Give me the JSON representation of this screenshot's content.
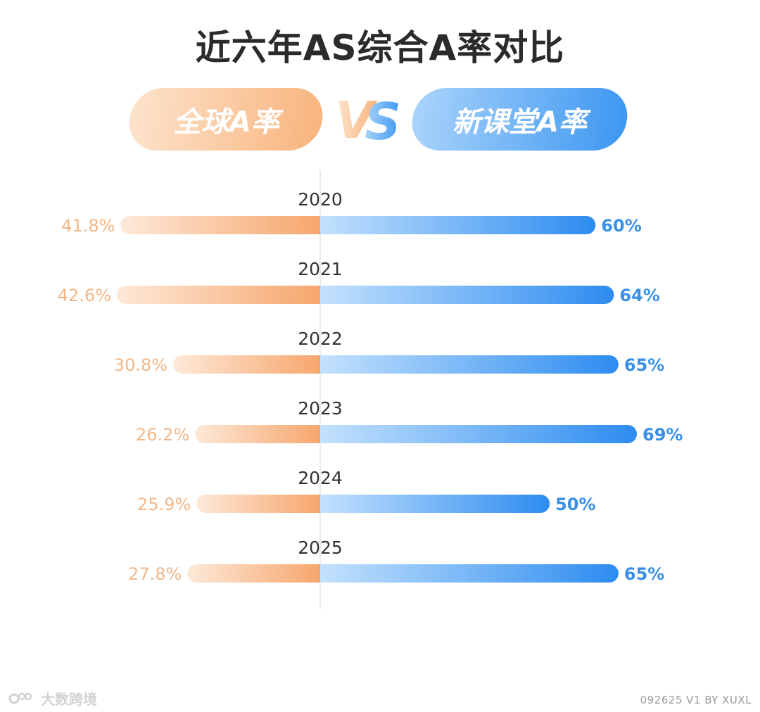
{
  "title": "近六年AS综合A率对比",
  "header": {
    "left_label": "全球A率",
    "vs_label": "VS",
    "right_label": "新课堂A率"
  },
  "colors": {
    "orange": "#f4a771",
    "orange_light": "#fde6d2",
    "blue": "#2f8ff0",
    "blue_light": "#b9dcfc",
    "label_orange": "#f2b788",
    "label_blue": "#3a8fe6"
  },
  "chart_data": {
    "type": "bar",
    "layout": "diverging",
    "categories": [
      "2020",
      "2021",
      "2022",
      "2023",
      "2024",
      "2025"
    ],
    "series": [
      {
        "name": "全球A率",
        "values": [
          41.8,
          42.6,
          30.8,
          26.2,
          25.9,
          27.8
        ],
        "labels": [
          "41.8%",
          "42.6%",
          "30.8%",
          "26.2%",
          "25.9%",
          "27.8%"
        ]
      },
      {
        "name": "新课堂A率",
        "values": [
          60,
          64,
          65,
          69,
          50,
          65
        ],
        "labels": [
          "60%",
          "64%",
          "65%",
          "69%",
          "50%",
          "65%"
        ]
      }
    ],
    "unit": "%"
  },
  "footer": {
    "logo_text": "大数跨境",
    "credit": "092625 V1 BY XUXL"
  }
}
